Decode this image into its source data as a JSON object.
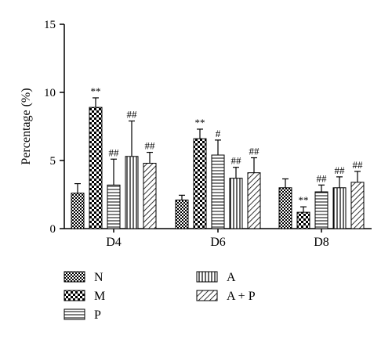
{
  "chart_data": {
    "type": "bar",
    "ylabel": "Percentage (%)",
    "xlabel": "",
    "ylim": [
      0,
      15
    ],
    "yticks": [
      0,
      5,
      10,
      15
    ],
    "categories": [
      "D4",
      "D6",
      "D8"
    ],
    "series": [
      {
        "name": "N",
        "pattern": "checker-small",
        "values": [
          2.6,
          2.1,
          3.0
        ],
        "errors": [
          0.7,
          0.35,
          0.65
        ],
        "annotations": [
          "",
          "",
          ""
        ]
      },
      {
        "name": "M",
        "pattern": "checker-large",
        "values": [
          8.9,
          6.6,
          1.2
        ],
        "errors": [
          0.7,
          0.7,
          0.4
        ],
        "annotations": [
          "**",
          "**",
          "**"
        ]
      },
      {
        "name": "P",
        "pattern": "horizontal-lines",
        "values": [
          3.2,
          5.4,
          2.7
        ],
        "errors": [
          1.9,
          1.1,
          0.5
        ],
        "annotations": [
          "##",
          "#",
          "##"
        ]
      },
      {
        "name": "A",
        "pattern": "vertical-lines",
        "values": [
          5.3,
          3.7,
          3.0
        ],
        "errors": [
          2.6,
          0.8,
          0.8
        ],
        "annotations": [
          "##",
          "##",
          "##"
        ]
      },
      {
        "name": "A + P",
        "pattern": "diagonal-lines",
        "values": [
          4.8,
          4.1,
          3.4
        ],
        "errors": [
          0.8,
          1.1,
          0.8
        ],
        "annotations": [
          "##",
          "##",
          "##"
        ]
      }
    ],
    "legend": {
      "placement": "bottom",
      "columns": 2
    }
  }
}
